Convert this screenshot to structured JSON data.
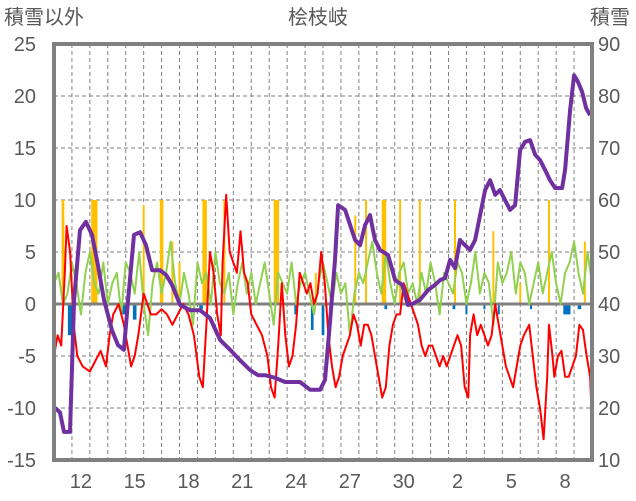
{
  "chart_data": {
    "type": "line",
    "title": "桧枝岐",
    "ylabel_left": "積雪以外",
    "ylabel_right": "積雪",
    "ylim_left": [
      -15,
      25
    ],
    "ylim_right": [
      10,
      90
    ],
    "yticks_left": [
      "25",
      "20",
      "15",
      "10",
      "5",
      "0",
      "-5",
      "-10",
      "-15"
    ],
    "yticks_right": [
      "90",
      "80",
      "70",
      "60",
      "50",
      "40",
      "30",
      "20",
      "10"
    ],
    "xlim_days": [
      0,
      30
    ],
    "x_tick_labels": [
      {
        "label": "12",
        "day": 1.5
      },
      {
        "label": "15",
        "day": 4.5
      },
      {
        "label": "18",
        "day": 7.5
      },
      {
        "label": "21",
        "day": 10.5
      },
      {
        "label": "24",
        "day": 13.5
      },
      {
        "label": "27",
        "day": 16.5
      },
      {
        "label": "30",
        "day": 19.5
      },
      {
        "label": "2",
        "day": 22.5
      },
      {
        "label": "5",
        "day": 25.5
      },
      {
        "label": "8",
        "day": 28.5
      }
    ],
    "grid": true,
    "colors": {
      "snow_depth": "#7030a0",
      "temperature": "#ff0000",
      "green_series": "#92d050",
      "precip": "#ffc000",
      "negative_bars": "#0070c0",
      "zero_line": "#808080",
      "frame": "#808080"
    },
    "series": [
      {
        "name": "snow_depth",
        "axis": "right",
        "points": [
          [
            0,
            20.2
          ],
          [
            0.33,
            19.2
          ],
          [
            0.56,
            15.4
          ],
          [
            0.89,
            15.4
          ],
          [
            1.12,
            40.8
          ],
          [
            1.45,
            54.2
          ],
          [
            1.78,
            55.8
          ],
          [
            2.12,
            53.3
          ],
          [
            2.45,
            47.5
          ],
          [
            2.79,
            40.8
          ],
          [
            3.23,
            35
          ],
          [
            3.57,
            32.1
          ],
          [
            3.9,
            31.2
          ],
          [
            4.13,
            40.8
          ],
          [
            4.46,
            53.3
          ],
          [
            4.8,
            53.8
          ],
          [
            5.13,
            51.3
          ],
          [
            5.47,
            46.5
          ],
          [
            5.91,
            46.5
          ],
          [
            6.25,
            45.6
          ],
          [
            6.58,
            43.7
          ],
          [
            7.03,
            39.8
          ],
          [
            7.59,
            38.8
          ],
          [
            8.14,
            38.8
          ],
          [
            8.7,
            37.3
          ],
          [
            9.26,
            33.1
          ],
          [
            9.82,
            31.2
          ],
          [
            10.37,
            29.2
          ],
          [
            10.93,
            27.3
          ],
          [
            11.38,
            26.3
          ],
          [
            11.77,
            26.3
          ],
          [
            12.33,
            25.8
          ],
          [
            12.88,
            25
          ],
          [
            13.72,
            25
          ],
          [
            14.28,
            23.5
          ],
          [
            14.84,
            23.5
          ],
          [
            15.11,
            25.4
          ],
          [
            15.39,
            36.5
          ],
          [
            15.67,
            48.5
          ],
          [
            15.84,
            59
          ],
          [
            16.23,
            58.1
          ],
          [
            16.51,
            55.2
          ],
          [
            16.79,
            52.3
          ],
          [
            17.07,
            51.3
          ],
          [
            17.35,
            55.2
          ],
          [
            17.62,
            57.1
          ],
          [
            17.9,
            52.3
          ],
          [
            18.18,
            50.4
          ],
          [
            18.63,
            49.4
          ],
          [
            19.02,
            44.6
          ],
          [
            19.41,
            43.7
          ],
          [
            19.74,
            39.8
          ],
          [
            19.97,
            40
          ],
          [
            20.41,
            40.8
          ],
          [
            20.86,
            42.7
          ],
          [
            21.25,
            43.7
          ],
          [
            21.53,
            44.6
          ],
          [
            21.81,
            45
          ],
          [
            22.09,
            48.5
          ],
          [
            22.36,
            46.9
          ],
          [
            22.64,
            52.3
          ],
          [
            22.92,
            51.3
          ],
          [
            23.2,
            50.4
          ],
          [
            23.48,
            52.3
          ],
          [
            23.76,
            57.1
          ],
          [
            24.04,
            61.9
          ],
          [
            24.32,
            63.8
          ],
          [
            24.6,
            61
          ],
          [
            24.87,
            61.9
          ],
          [
            25.15,
            60
          ],
          [
            25.43,
            58.1
          ],
          [
            25.71,
            59
          ],
          [
            25.99,
            69.6
          ],
          [
            26.27,
            71.2
          ],
          [
            26.55,
            71.5
          ],
          [
            26.83,
            68.7
          ],
          [
            27.1,
            67.7
          ],
          [
            27.38,
            65.8
          ],
          [
            27.66,
            63.8
          ],
          [
            27.94,
            62.3
          ],
          [
            28.33,
            62.3
          ],
          [
            28.5,
            65.8
          ],
          [
            28.78,
            77.3
          ],
          [
            29.0,
            84
          ],
          [
            29.22,
            82.7
          ],
          [
            29.45,
            80.8
          ],
          [
            29.67,
            77.7
          ],
          [
            29.89,
            76.3
          ]
        ]
      },
      {
        "name": "temperature",
        "axis": "left",
        "points": [
          [
            0,
            -5
          ],
          [
            0.2,
            -3
          ],
          [
            0.4,
            -4
          ],
          [
            0.6,
            3
          ],
          [
            0.7,
            7.5
          ],
          [
            0.9,
            5
          ],
          [
            1.1,
            -2
          ],
          [
            1.3,
            -5
          ],
          [
            1.6,
            -6
          ],
          [
            2.0,
            -6.5
          ],
          [
            2.3,
            -5.5
          ],
          [
            2.6,
            -4.5
          ],
          [
            2.9,
            -6
          ],
          [
            3.1,
            -3
          ],
          [
            3.3,
            -1
          ],
          [
            3.6,
            0
          ],
          [
            3.9,
            -2
          ],
          [
            4.1,
            -4
          ],
          [
            4.3,
            -6
          ],
          [
            4.5,
            -5
          ],
          [
            4.7,
            -3
          ],
          [
            5.0,
            1
          ],
          [
            5.2,
            0
          ],
          [
            5.4,
            -1
          ],
          [
            5.7,
            -1
          ],
          [
            6.0,
            -0.5
          ],
          [
            6.3,
            -1
          ],
          [
            6.6,
            -2
          ],
          [
            6.9,
            -1
          ],
          [
            7.2,
            0
          ],
          [
            7.5,
            -1
          ],
          [
            7.8,
            -3
          ],
          [
            8.1,
            -7
          ],
          [
            8.3,
            -8
          ],
          [
            8.5,
            -2
          ],
          [
            8.7,
            5
          ],
          [
            8.9,
            3
          ],
          [
            9.1,
            -1
          ],
          [
            9.3,
            -3
          ],
          [
            9.4,
            4
          ],
          [
            9.6,
            10.5
          ],
          [
            9.8,
            5
          ],
          [
            10.0,
            4
          ],
          [
            10.2,
            3
          ],
          [
            10.4,
            7
          ],
          [
            10.6,
            3
          ],
          [
            10.8,
            2
          ],
          [
            11.0,
            -1
          ],
          [
            11.3,
            -2
          ],
          [
            11.6,
            -3
          ],
          [
            11.9,
            -5
          ],
          [
            12.1,
            -8
          ],
          [
            12.3,
            -9
          ],
          [
            12.5,
            -4
          ],
          [
            12.7,
            2
          ],
          [
            12.9,
            -3
          ],
          [
            13.1,
            -6
          ],
          [
            13.3,
            -5
          ],
          [
            13.5,
            -2
          ],
          [
            13.7,
            3
          ],
          [
            13.9,
            2
          ],
          [
            14.1,
            1
          ],
          [
            14.3,
            2
          ],
          [
            14.5,
            0
          ],
          [
            14.7,
            1
          ],
          [
            14.9,
            5
          ],
          [
            15.1,
            2
          ],
          [
            15.3,
            -3
          ],
          [
            15.5,
            -6
          ],
          [
            15.7,
            -8
          ],
          [
            15.9,
            -7
          ],
          [
            16.1,
            -5
          ],
          [
            16.3,
            -4
          ],
          [
            16.5,
            -3
          ],
          [
            16.7,
            -1
          ],
          [
            16.9,
            -2
          ],
          [
            17.1,
            -4
          ],
          [
            17.3,
            -2
          ],
          [
            17.5,
            -2
          ],
          [
            17.7,
            -3
          ],
          [
            17.9,
            -5
          ],
          [
            18.1,
            -7
          ],
          [
            18.3,
            -9
          ],
          [
            18.5,
            -8
          ],
          [
            18.7,
            -4
          ],
          [
            18.9,
            -2
          ],
          [
            19.1,
            -1
          ],
          [
            19.3,
            -1
          ],
          [
            19.5,
            2
          ],
          [
            19.7,
            1
          ],
          [
            19.9,
            0
          ],
          [
            20.1,
            -1
          ],
          [
            20.3,
            -2
          ],
          [
            20.5,
            -4
          ],
          [
            20.7,
            -5
          ],
          [
            20.9,
            -4
          ],
          [
            21.1,
            -4
          ],
          [
            21.3,
            -5
          ],
          [
            21.5,
            -6
          ],
          [
            21.7,
            -5
          ],
          [
            21.9,
            -6
          ],
          [
            22.1,
            -5
          ],
          [
            22.3,
            -4
          ],
          [
            22.5,
            -3
          ],
          [
            22.7,
            -4
          ],
          [
            22.9,
            -8
          ],
          [
            23.1,
            -9
          ],
          [
            23.2,
            -3
          ],
          [
            23.4,
            -1
          ],
          [
            23.6,
            -3
          ],
          [
            23.8,
            -2
          ],
          [
            24.0,
            -3
          ],
          [
            24.2,
            -4
          ],
          [
            24.4,
            -3
          ],
          [
            24.6,
            0
          ],
          [
            24.8,
            -2
          ],
          [
            25.0,
            -4
          ],
          [
            25.2,
            -6
          ],
          [
            25.4,
            -7
          ],
          [
            25.6,
            -8
          ],
          [
            25.8,
            -6
          ],
          [
            26.0,
            -4
          ],
          [
            26.2,
            -3
          ],
          [
            26.5,
            -2
          ],
          [
            26.7,
            -5
          ],
          [
            26.9,
            -8
          ],
          [
            27.1,
            -10
          ],
          [
            27.3,
            -13
          ],
          [
            27.5,
            -7
          ],
          [
            27.6,
            -2
          ],
          [
            27.8,
            -5
          ],
          [
            27.9,
            -7
          ],
          [
            28.1,
            -5
          ],
          [
            28.3,
            -4.5
          ],
          [
            28.5,
            -7
          ],
          [
            28.7,
            -7
          ],
          [
            28.9,
            -6
          ],
          [
            29.1,
            -5
          ],
          [
            29.3,
            -2
          ],
          [
            29.5,
            -2.5
          ],
          [
            29.7,
            -5
          ],
          [
            29.9,
            -7
          ],
          [
            30.0,
            -12
          ]
        ]
      },
      {
        "name": "green_series",
        "axis": "left",
        "step": 0.25,
        "values": [
          2,
          3,
          0,
          1,
          4,
          2,
          -1,
          3,
          5,
          2,
          1,
          4,
          0,
          2,
          3,
          -1,
          4,
          3,
          1,
          5,
          0,
          -3,
          2,
          4,
          1,
          3,
          6,
          2,
          0,
          3,
          1,
          -2,
          4,
          2,
          3,
          0,
          5,
          2,
          1,
          3,
          -1,
          2,
          4,
          1,
          3,
          0,
          2,
          4,
          1,
          -2,
          3,
          2,
          1,
          4,
          0,
          2,
          3,
          1,
          -1,
          2,
          4,
          2,
          0,
          3,
          1,
          2,
          -3,
          1,
          3,
          2,
          4,
          6,
          3,
          1,
          5,
          2,
          0,
          3,
          4,
          1,
          2,
          0,
          3,
          1,
          4,
          2,
          -1,
          3,
          2,
          1,
          4,
          3,
          0,
          2,
          5,
          1,
          3,
          2,
          -2,
          4,
          2,
          3,
          5,
          1,
          4,
          3,
          0,
          2,
          4,
          1,
          3,
          5,
          2,
          0,
          3,
          4,
          6,
          3,
          1,
          5,
          2
        ]
      },
      {
        "name": "precip",
        "axis": "left",
        "kind": "bar",
        "bars": [
          [
            0.5,
            10,
            0.15
          ],
          [
            2.25,
            10,
            0.35
          ],
          [
            5.0,
            9.5,
            0.06
          ],
          [
            6.0,
            10,
            0.2
          ],
          [
            6.6,
            6,
            0.06
          ],
          [
            7.0,
            4,
            0.05
          ],
          [
            8.4,
            10,
            0.25
          ],
          [
            9.5,
            10,
            0.1
          ],
          [
            12.4,
            10,
            0.3
          ],
          [
            16.8,
            8.5,
            0.1
          ],
          [
            17.4,
            10,
            0.06
          ],
          [
            18.4,
            10,
            0.25
          ],
          [
            19.3,
            10,
            0.06
          ],
          [
            20.4,
            10,
            0.05
          ],
          [
            22.36,
            10,
            0.05
          ],
          [
            24.5,
            7,
            0.08
          ],
          [
            27.6,
            10,
            0.1
          ],
          [
            29.6,
            6,
            0.05
          ],
          [
            26.0,
            2,
            0.08
          ],
          [
            14.6,
            3,
            0.05
          ]
        ]
      },
      {
        "name": "negative_bars",
        "axis": "left",
        "kind": "bar",
        "bars": [
          [
            0.9,
            -3,
            0.25
          ],
          [
            3.9,
            -1,
            0.3
          ],
          [
            4.5,
            -1.5,
            0.2
          ],
          [
            8.2,
            -0.5,
            0.2
          ],
          [
            13.5,
            -1,
            0.2
          ],
          [
            14.4,
            -2.5,
            0.15
          ],
          [
            15.0,
            -3,
            0.15
          ],
          [
            18.5,
            -0.5,
            0.15
          ],
          [
            22.3,
            -0.5,
            0.15
          ],
          [
            23.0,
            -1,
            0.1
          ],
          [
            24.0,
            -0.5,
            0.1
          ],
          [
            24.8,
            -1,
            0.1
          ],
          [
            26.6,
            -0.5,
            0.1
          ],
          [
            28.6,
            -1,
            0.4
          ],
          [
            29.3,
            -0.5,
            0.2
          ]
        ]
      }
    ]
  }
}
